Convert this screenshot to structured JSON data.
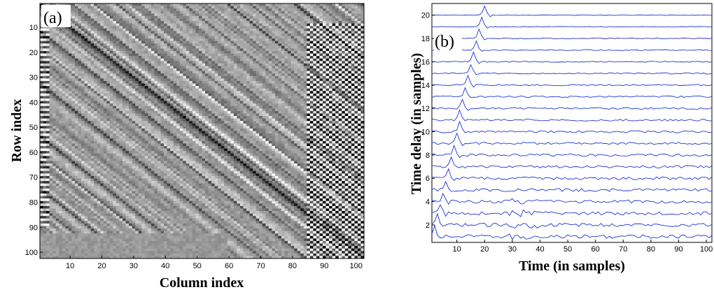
{
  "chart_data": [
    {
      "type": "heatmap",
      "panel_label": "(a)",
      "xlabel": "Column index",
      "ylabel": "Row index",
      "xlim": [
        1,
        102
      ],
      "ylim": [
        1,
        102
      ],
      "x_ticks": [
        10,
        20,
        30,
        40,
        50,
        60,
        70,
        80,
        90,
        100
      ],
      "y_ticks": [
        10,
        20,
        30,
        40,
        50,
        60,
        70,
        80,
        90,
        100
      ],
      "colormap": "gray",
      "main_diagonal": "dark, from top-left to bottom-right",
      "high_contrast_region": "columns 85–102",
      "grid": false,
      "legend": "none"
    },
    {
      "type": "line",
      "panel_label": "(b)",
      "xlabel": "Time (in samples)",
      "ylabel": "Time delay (in samples)",
      "xlim": [
        1,
        102
      ],
      "ylim": [
        0.5,
        21
      ],
      "x_ticks": [
        10,
        20,
        30,
        40,
        50,
        60,
        70,
        80,
        90,
        100
      ],
      "y_ticks": [
        2,
        4,
        6,
        8,
        10,
        12,
        14,
        16,
        18,
        20
      ],
      "series_color": "#1f35d6",
      "series_count": 20,
      "series_offsets": [
        1,
        2,
        3,
        4,
        5,
        6,
        7,
        8,
        9,
        10,
        11,
        12,
        13,
        14,
        15,
        16,
        17,
        18,
        19,
        20
      ],
      "pulse_time_samples": [
        2,
        3,
        4,
        5,
        6,
        7,
        8,
        9,
        10,
        11,
        11,
        12,
        13,
        14,
        15,
        16,
        17,
        18,
        19,
        20
      ],
      "grid": false,
      "legend": "none"
    }
  ]
}
